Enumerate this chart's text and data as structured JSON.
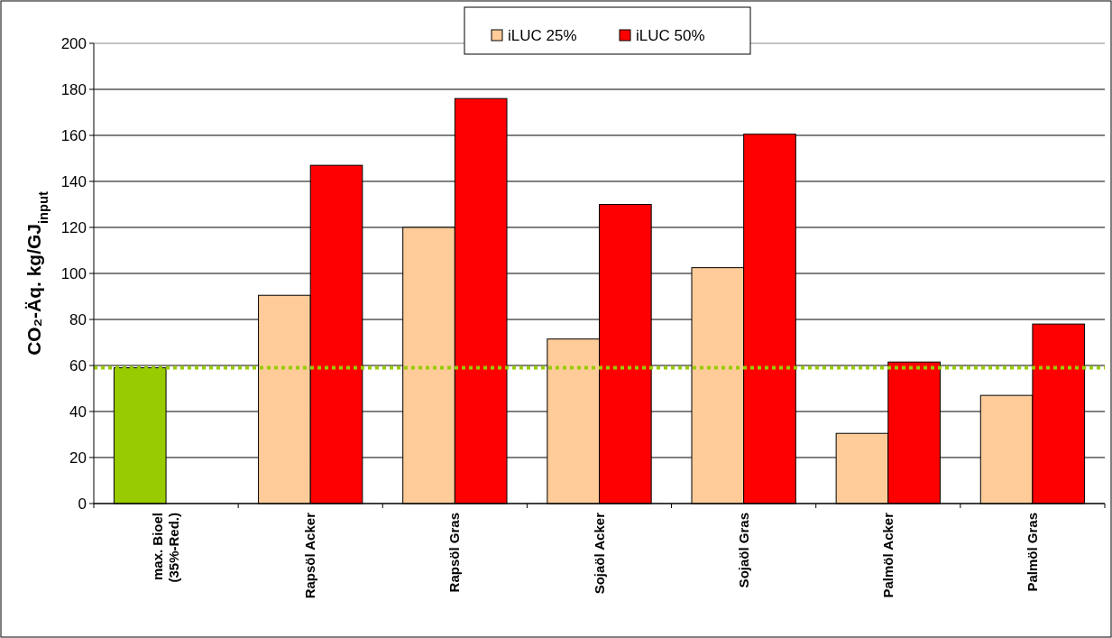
{
  "chart_data": {
    "type": "bar",
    "categories": [
      "max. Bioel\n(35%-Red.)",
      "Rapsöl Acker",
      "Rapsöl Gras",
      "Sojaöl Acker",
      "Sojaöl Gras",
      "Palmöl Acker",
      "Palmöl Gras"
    ],
    "series": [
      {
        "name": "iLUC 25%",
        "color": "#ffcc99",
        "colors": [
          "#99cc00",
          "#ffcc99",
          "#ffcc99",
          "#ffcc99",
          "#ffcc99",
          "#ffcc99",
          "#ffcc99"
        ],
        "values": [
          59,
          90.5,
          120,
          71.5,
          102.5,
          30.5,
          47
        ]
      },
      {
        "name": "iLUC 50%",
        "color": "#ff0000",
        "values": [
          null,
          147,
          176,
          130,
          160.5,
          61.5,
          78
        ]
      }
    ],
    "ylabel": "CO₂-Äq.  kg/GJ$_{input}$",
    "ylim": [
      0,
      200
    ],
    "yticks": [
      0,
      20,
      40,
      60,
      80,
      100,
      120,
      140,
      160,
      180,
      200
    ],
    "grid": "y",
    "legend": "top",
    "ref_lines": [
      {
        "axis": "y",
        "value": 59,
        "color": "#99cc00",
        "line_style": "dotted"
      }
    ]
  }
}
